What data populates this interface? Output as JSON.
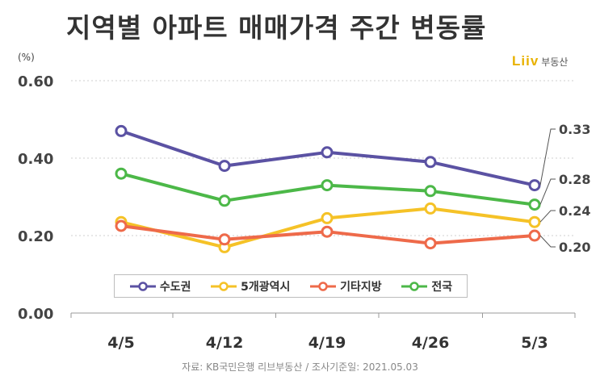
{
  "chart_data": {
    "type": "line",
    "title": "지역별 아파트 매매가격 주간 변동률",
    "unit": "(%)",
    "categories": [
      "4/5",
      "4/12",
      "4/19",
      "4/26",
      "5/3"
    ],
    "yticks": [
      "0.00",
      "0.20",
      "0.40",
      "0.60"
    ],
    "ylim": [
      0,
      0.6
    ],
    "grid": "horizontal-dotted",
    "series": [
      {
        "name": "수도권",
        "color": "#5b52a3",
        "values": [
          0.47,
          0.38,
          0.415,
          0.39,
          0.33
        ],
        "end_label": "0.33"
      },
      {
        "name": "5개광역시",
        "color": "#f5c227",
        "values": [
          0.235,
          0.17,
          0.245,
          0.27,
          0.235
        ],
        "end_label": "0.24"
      },
      {
        "name": "기타지방",
        "color": "#ee6a4a",
        "values": [
          0.225,
          0.19,
          0.21,
          0.18,
          0.2
        ],
        "end_label": "0.20"
      },
      {
        "name": "전국",
        "color": "#4cb848",
        "values": [
          0.36,
          0.29,
          0.33,
          0.315,
          0.28
        ],
        "end_label": "0.28"
      }
    ],
    "legend_position": "bottom-center"
  },
  "logo": {
    "mark": "Liiv",
    "text": "부동산"
  },
  "source": "자료: KB국민은행 리브부동산 / 조사기준일: 2021.05.03"
}
